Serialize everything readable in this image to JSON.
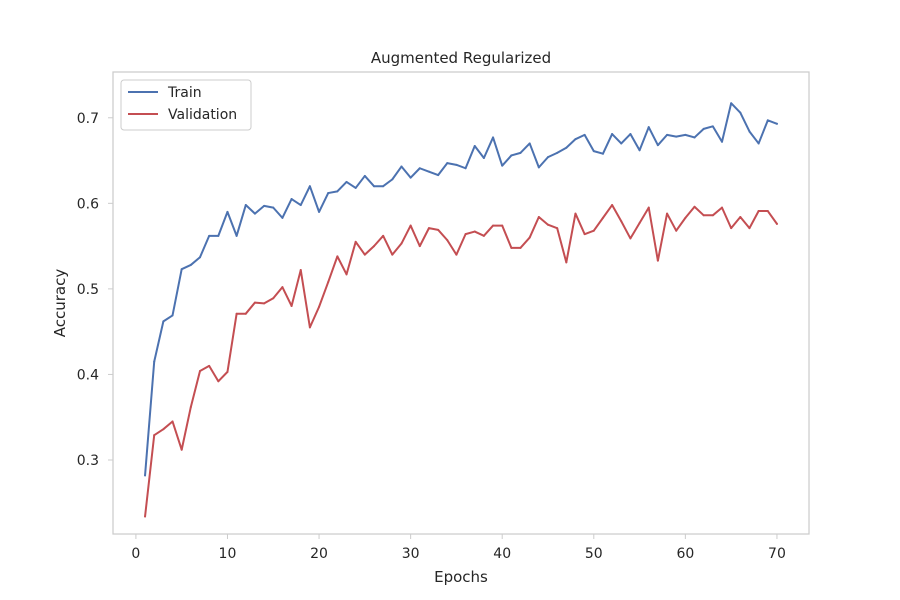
{
  "chart_data": {
    "type": "line",
    "title": "Augmented Regularized",
    "xlabel": "Epochs",
    "ylabel": "Accuracy",
    "xlim": [
      -2.5,
      73.5
    ],
    "ylim": [
      0.2135,
      0.7535
    ],
    "xticks": [
      0,
      10,
      20,
      30,
      40,
      50,
      60,
      70
    ],
    "yticks": [
      0.3,
      0.4,
      0.5,
      0.6,
      0.7
    ],
    "ytick_labels": [
      "0.3",
      "0.4",
      "0.5",
      "0.6",
      "0.7"
    ],
    "grid": false,
    "legend_position": "upper-left",
    "x": [
      1,
      2,
      3,
      4,
      5,
      6,
      7,
      8,
      9,
      10,
      11,
      12,
      13,
      14,
      15,
      16,
      17,
      18,
      19,
      20,
      21,
      22,
      23,
      24,
      25,
      26,
      27,
      28,
      29,
      30,
      31,
      32,
      33,
      34,
      35,
      36,
      37,
      38,
      39,
      40,
      41,
      42,
      43,
      44,
      45,
      46,
      47,
      48,
      49,
      50,
      51,
      52,
      53,
      54,
      55,
      56,
      57,
      58,
      59,
      60,
      61,
      62,
      63,
      64,
      65,
      66,
      67,
      68,
      69,
      70
    ],
    "series": [
      {
        "name": "Train",
        "color": "#4c72b0",
        "values": [
          0.282,
          0.415,
          0.462,
          0.469,
          0.523,
          0.528,
          0.537,
          0.562,
          0.562,
          0.59,
          0.562,
          0.598,
          0.588,
          0.597,
          0.595,
          0.583,
          0.605,
          0.598,
          0.62,
          0.59,
          0.612,
          0.614,
          0.625,
          0.618,
          0.632,
          0.62,
          0.62,
          0.628,
          0.643,
          0.63,
          0.641,
          0.637,
          0.633,
          0.647,
          0.645,
          0.641,
          0.667,
          0.653,
          0.677,
          0.644,
          0.656,
          0.659,
          0.67,
          0.642,
          0.654,
          0.659,
          0.665,
          0.675,
          0.68,
          0.661,
          0.658,
          0.681,
          0.67,
          0.681,
          0.662,
          0.689,
          0.668,
          0.68,
          0.678,
          0.68,
          0.677,
          0.687,
          0.69,
          0.672,
          0.717,
          0.706,
          0.684,
          0.67,
          0.697,
          0.693
        ]
      },
      {
        "name": "Validation",
        "color": "#c44e52",
        "values": [
          0.234,
          0.329,
          0.336,
          0.345,
          0.312,
          0.362,
          0.404,
          0.41,
          0.392,
          0.403,
          0.471,
          0.471,
          0.484,
          0.483,
          0.489,
          0.502,
          0.48,
          0.522,
          0.455,
          0.479,
          0.508,
          0.538,
          0.517,
          0.555,
          0.54,
          0.55,
          0.562,
          0.54,
          0.553,
          0.574,
          0.55,
          0.571,
          0.569,
          0.557,
          0.54,
          0.564,
          0.567,
          0.562,
          0.574,
          0.574,
          0.548,
          0.548,
          0.56,
          0.584,
          0.575,
          0.571,
          0.531,
          0.588,
          0.564,
          0.568,
          0.583,
          0.598,
          0.579,
          0.559,
          0.577,
          0.595,
          0.533,
          0.588,
          0.568,
          0.583,
          0.596,
          0.586,
          0.586,
          0.595,
          0.571,
          0.584,
          0.571,
          0.591,
          0.591,
          0.576
        ]
      }
    ]
  }
}
